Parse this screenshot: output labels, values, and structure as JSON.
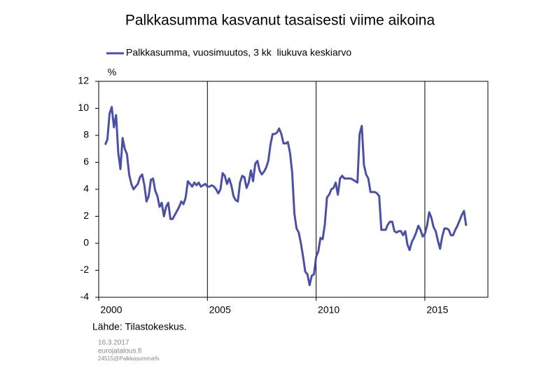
{
  "chart_data": {
    "type": "line",
    "title": "Palkkasumma kasvanut tasaisesti viime aikoina",
    "y_label": "%",
    "source": "Lähde: Tilastokeskus.",
    "notes": [
      "16.3.2017",
      "eurojatalous.fi",
      "24515@Palkkasumma%"
    ],
    "x": [
      2000.3,
      2000.4,
      2000.5,
      2000.6,
      2000.7,
      2000.8,
      2000.9,
      2001,
      2001.1,
      2001.2,
      2001.3,
      2001.4,
      2001.5,
      2001.6,
      2001.7,
      2001.8,
      2001.9,
      2002,
      2002.1,
      2002.2,
      2002.3,
      2002.4,
      2002.5,
      2002.6,
      2002.7,
      2002.8,
      2002.9,
      2003,
      2003.1,
      2003.2,
      2003.3,
      2003.4,
      2003.5,
      2003.6,
      2003.7,
      2003.8,
      2003.9,
      2004,
      2004.1,
      2004.2,
      2004.3,
      2004.4,
      2004.5,
      2004.6,
      2004.7,
      2004.8,
      2004.9,
      2005,
      2005.1,
      2005.2,
      2005.3,
      2005.4,
      2005.5,
      2005.6,
      2005.7,
      2005.8,
      2005.9,
      2006,
      2006.1,
      2006.2,
      2006.3,
      2006.4,
      2006.5,
      2006.6,
      2006.7,
      2006.8,
      2006.9,
      2007,
      2007.1,
      2007.2,
      2007.3,
      2007.4,
      2007.5,
      2007.6,
      2007.7,
      2007.8,
      2007.9,
      2008,
      2008.1,
      2008.2,
      2008.3,
      2008.4,
      2008.5,
      2008.6,
      2008.7,
      2008.8,
      2008.9,
      2009,
      2009.1,
      2009.2,
      2009.3,
      2009.4,
      2009.5,
      2009.6,
      2009.7,
      2009.8,
      2009.9,
      2010,
      2010.1,
      2010.2,
      2010.3,
      2010.4,
      2010.5,
      2010.6,
      2010.7,
      2010.8,
      2010.9,
      2011,
      2011.1,
      2011.2,
      2011.3,
      2011.4,
      2011.5,
      2011.6,
      2011.7,
      2011.8,
      2011.9,
      2012,
      2012.1,
      2012.2,
      2012.3,
      2012.4,
      2012.5,
      2012.6,
      2012.7,
      2012.8,
      2012.9,
      2013,
      2013.1,
      2013.2,
      2013.3,
      2013.4,
      2013.5,
      2013.6,
      2013.7,
      2013.8,
      2013.9,
      2014,
      2014.1,
      2014.2,
      2014.3,
      2014.4,
      2014.5,
      2014.6,
      2014.7,
      2014.8,
      2014.9,
      2015,
      2015.1,
      2015.2,
      2015.3,
      2015.4,
      2015.5,
      2015.6,
      2015.7,
      2015.8,
      2015.9,
      2016,
      2016.1,
      2016.2,
      2016.3,
      2016.4,
      2016.5,
      2016.6,
      2016.7,
      2016.8,
      2016.9
    ],
    "series": [
      {
        "name": "Palkkasumma, vuosimuutos, 3 kk  liukuva keskiarvo",
        "color": "#4b50a5",
        "values": [
          7.3,
          7.7,
          9.6,
          10.1,
          8.6,
          9.5,
          6.7,
          5.5,
          7.8,
          7.0,
          6.6,
          5.1,
          4.4,
          4.0,
          4.2,
          4.4,
          4.9,
          5.1,
          4.3,
          3.1,
          3.5,
          4.7,
          4.8,
          3.9,
          3.5,
          2.7,
          3.0,
          2.0,
          2.7,
          3.0,
          1.8,
          1.8,
          2.1,
          2.4,
          2.7,
          3.1,
          2.9,
          3.4,
          4.6,
          4.4,
          4.2,
          4.5,
          4.3,
          4.5,
          4.2,
          4.3,
          4.4,
          4.2,
          4.2,
          4.3,
          4.2,
          4.0,
          3.7,
          4.0,
          5.2,
          5.0,
          4.4,
          4.8,
          4.3,
          3.5,
          3.2,
          3.1,
          4.5,
          5.0,
          4.9,
          4.1,
          4.5,
          5.4,
          4.6,
          5.9,
          6.1,
          5.4,
          5.1,
          5.3,
          5.6,
          6.1,
          7.3,
          8.1,
          8.1,
          8.2,
          8.5,
          8.1,
          7.4,
          7.4,
          7.5,
          6.7,
          5.2,
          2.2,
          1.1,
          0.8,
          0.0,
          -1.0,
          -2.1,
          -2.3,
          -3.1,
          -2.4,
          -2.3,
          -1.0,
          -0.6,
          0.4,
          0.3,
          1.4,
          3.4,
          3.6,
          4.0,
          4.1,
          4.5,
          3.6,
          4.8,
          5.0,
          4.8,
          4.8,
          4.8,
          4.8,
          4.7,
          4.6,
          4.5,
          8.1,
          8.7,
          5.8,
          5.1,
          4.8,
          3.8,
          3.8,
          3.8,
          3.7,
          3.5,
          1.0,
          1.0,
          1.0,
          1.4,
          1.6,
          1.6,
          0.9,
          0.8,
          0.9,
          0.9,
          0.6,
          0.9,
          -0.1,
          -0.5,
          0.1,
          0.4,
          0.8,
          1.3,
          1.0,
          0.5,
          0.7,
          1.3,
          2.3,
          1.9,
          1.2,
          0.9,
          0.2,
          -0.4,
          0.5,
          1.1,
          1.1,
          1.0,
          0.6,
          0.6,
          1.0,
          1.3,
          1.7,
          2.1,
          2.4,
          1.3
        ]
      }
    ],
    "xlim": [
      2000,
      2017.9
    ],
    "xticks": [
      2000,
      2005,
      2010,
      2015
    ],
    "ylim": [
      -4,
      12
    ],
    "yticks": [
      -4,
      -2,
      0,
      2,
      4,
      6,
      8,
      10,
      12
    ],
    "grid": "x",
    "legend": "top"
  }
}
